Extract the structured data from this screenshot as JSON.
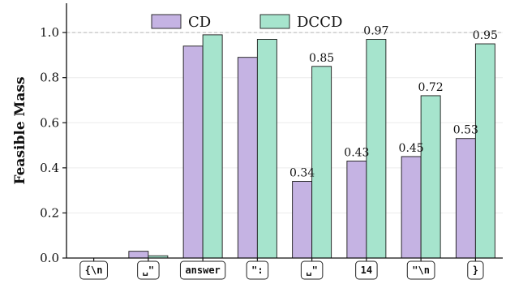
{
  "chart_data": {
    "type": "bar",
    "title": "",
    "xlabel": "",
    "ylabel": "Feasible Mass",
    "ylim": [
      0,
      1.13
    ],
    "yticks": [
      "0.0",
      "0.2",
      "0.4",
      "0.6",
      "0.8",
      "1.0"
    ],
    "reference_line": 1.0,
    "legend_position": "top-center",
    "categories": [
      "{\\n",
      "␣\"",
      "answer",
      "\":",
      "␣\"",
      "14",
      "\"\\n",
      "}"
    ],
    "series": [
      {
        "name": "CD",
        "color": "#c5b3e3",
        "values": [
          0.0,
          0.03,
          0.94,
          0.89,
          0.34,
          0.43,
          0.45,
          0.53
        ],
        "labels": [
          "",
          "",
          "",
          "",
          "0.34",
          "0.43",
          "0.45",
          "0.53"
        ]
      },
      {
        "name": "DCCD",
        "color": "#a6e4cd",
        "values": [
          0.0,
          0.01,
          0.99,
          0.97,
          0.85,
          0.97,
          0.72,
          0.95
        ],
        "labels": [
          "",
          "",
          "",
          "",
          "0.85",
          "0.97",
          "0.72",
          "0.95"
        ]
      }
    ]
  }
}
